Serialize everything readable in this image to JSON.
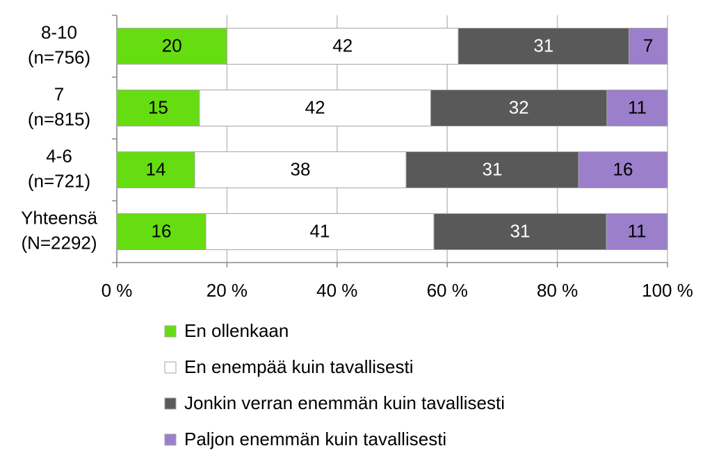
{
  "chart_data": {
    "type": "bar",
    "orientation": "horizontal",
    "stacking": "percent",
    "categories": [
      [
        "8-10",
        "(n=756)"
      ],
      [
        "7",
        "(n=815)"
      ],
      [
        "4-6",
        "(n=721)"
      ],
      [
        "Yhteensä",
        "(N=2292)"
      ]
    ],
    "series": [
      {
        "name": "En ollenkaan",
        "color": "#66dd11",
        "label_color": "#000000",
        "values": [
          20,
          15,
          14,
          16
        ]
      },
      {
        "name": "En enempää kuin tavallisesti",
        "color": "#ffffff",
        "label_color": "#000000",
        "values": [
          42,
          42,
          38,
          41
        ]
      },
      {
        "name": "Jonkin verran enemmän kuin tavallisesti",
        "color": "#595959",
        "label_color": "#ffffff",
        "values": [
          31,
          32,
          31,
          31
        ]
      },
      {
        "name": "Paljon enemmän kuin tavallisesti",
        "color": "#9b7fcb",
        "label_color": "#000000",
        "values": [
          7,
          11,
          16,
          11
        ]
      }
    ],
    "xlim": [
      0,
      100
    ],
    "xticks": [
      {
        "value": 0,
        "label": "0 %"
      },
      {
        "value": 20,
        "label": "20 %"
      },
      {
        "value": 40,
        "label": "40 %"
      },
      {
        "value": 60,
        "label": "60 %"
      },
      {
        "value": 80,
        "label": "80 %"
      },
      {
        "value": 100,
        "label": "100 %"
      }
    ],
    "grid": true,
    "legend": "bottom"
  }
}
